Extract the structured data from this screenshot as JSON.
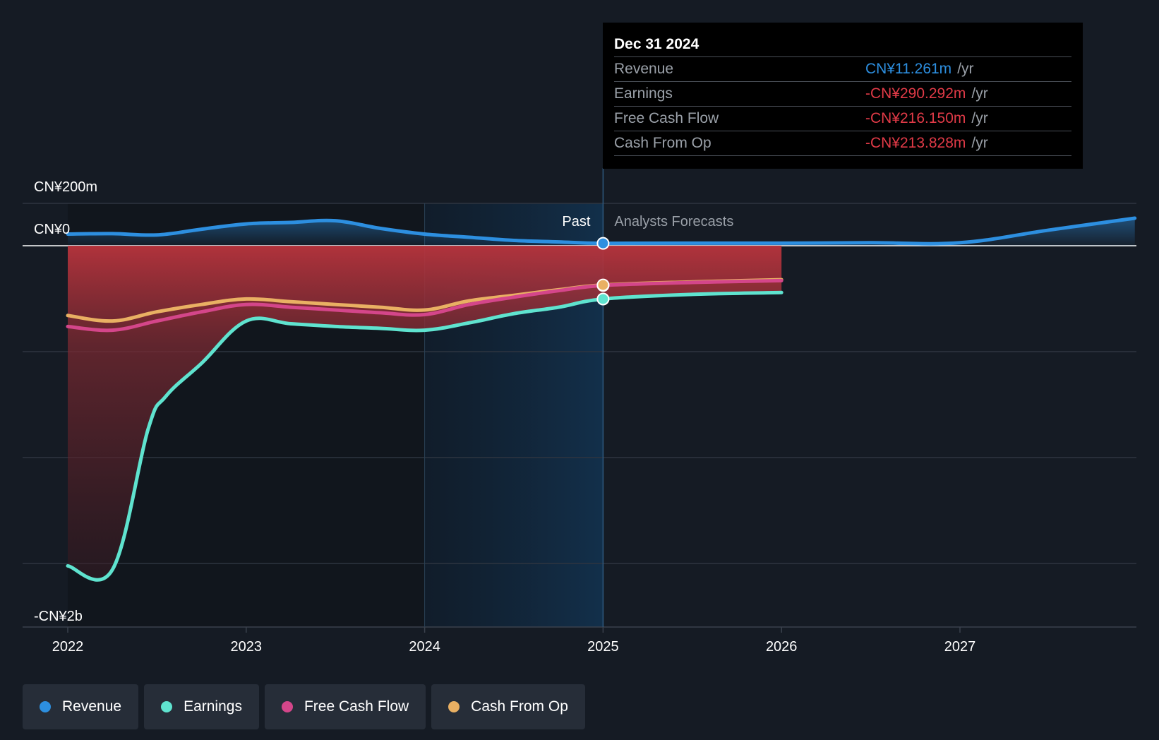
{
  "chart_data": {
    "type": "line",
    "y_axis": {
      "labels": [
        "CN¥200m",
        "CN¥0",
        "-CN¥2b"
      ],
      "unit": "CN¥"
    },
    "x_axis": {
      "ticks": [
        "2022",
        "2023",
        "2024",
        "2025",
        "2026",
        "2027"
      ],
      "range": [
        2021.75,
        2027.98
      ]
    },
    "ylim": [
      -2000,
      200
    ],
    "regions": {
      "past_label": "Past",
      "forecast_label": "Analysts Forecasts",
      "divider_x": 2025.0
    },
    "series": [
      {
        "name": "Revenue",
        "color": "#2d8fe0",
        "points": [
          [
            2022.0,
            55
          ],
          [
            2022.25,
            57
          ],
          [
            2022.5,
            51
          ],
          [
            2022.75,
            78
          ],
          [
            2023.0,
            103
          ],
          [
            2023.25,
            110
          ],
          [
            2023.5,
            118
          ],
          [
            2023.75,
            82
          ],
          [
            2024.0,
            55
          ],
          [
            2024.25,
            40
          ],
          [
            2024.5,
            25
          ],
          [
            2024.75,
            18
          ],
          [
            2025.0,
            11.261
          ],
          [
            2025.5,
            12
          ],
          [
            2026.0,
            12
          ],
          [
            2026.5,
            14
          ],
          [
            2027.0,
            14
          ],
          [
            2027.5,
            74
          ],
          [
            2027.98,
            130
          ]
        ]
      },
      {
        "name": "Earnings",
        "color": "#5fe3cf",
        "points": [
          [
            2022.0,
            -1744
          ],
          [
            2022.25,
            -1765
          ],
          [
            2022.45,
            -1000
          ],
          [
            2022.55,
            -820
          ],
          [
            2022.75,
            -640
          ],
          [
            2023.0,
            -410
          ],
          [
            2023.25,
            -425
          ],
          [
            2023.5,
            -440
          ],
          [
            2023.75,
            -450
          ],
          [
            2024.0,
            -460
          ],
          [
            2024.25,
            -420
          ],
          [
            2024.5,
            -370
          ],
          [
            2024.75,
            -335
          ],
          [
            2025.0,
            -290.292
          ],
          [
            2025.5,
            -265
          ],
          [
            2026.0,
            -255
          ]
        ]
      },
      {
        "name": "Free Cash Flow",
        "color": "#d4468a",
        "points": [
          [
            2022.0,
            -440
          ],
          [
            2022.25,
            -460
          ],
          [
            2022.5,
            -410
          ],
          [
            2022.75,
            -360
          ],
          [
            2023.0,
            -320
          ],
          [
            2023.25,
            -335
          ],
          [
            2023.5,
            -350
          ],
          [
            2023.75,
            -365
          ],
          [
            2024.0,
            -375
          ],
          [
            2024.25,
            -320
          ],
          [
            2024.5,
            -280
          ],
          [
            2024.75,
            -245
          ],
          [
            2025.0,
            -216.15
          ],
          [
            2025.5,
            -200
          ],
          [
            2026.0,
            -190
          ]
        ]
      },
      {
        "name": "Cash From Op",
        "color": "#e9b063",
        "points": [
          [
            2022.0,
            -380
          ],
          [
            2022.25,
            -410
          ],
          [
            2022.5,
            -360
          ],
          [
            2022.75,
            -320
          ],
          [
            2023.0,
            -290
          ],
          [
            2023.25,
            -305
          ],
          [
            2023.5,
            -320
          ],
          [
            2023.75,
            -335
          ],
          [
            2024.0,
            -350
          ],
          [
            2024.25,
            -300
          ],
          [
            2024.5,
            -270
          ],
          [
            2024.75,
            -240
          ],
          [
            2025.0,
            -213.828
          ],
          [
            2025.5,
            -197
          ],
          [
            2026.0,
            -185
          ]
        ]
      }
    ]
  },
  "tooltip": {
    "date": "Dec 31 2024",
    "rows": [
      {
        "label": "Revenue",
        "value": "CN¥11.261m",
        "unit": "/yr",
        "color": "#2d8fe0"
      },
      {
        "label": "Earnings",
        "value": "-CN¥290.292m",
        "unit": "/yr",
        "color": "#e03a47"
      },
      {
        "label": "Free Cash Flow",
        "value": "-CN¥216.150m",
        "unit": "/yr",
        "color": "#e03a47"
      },
      {
        "label": "Cash From Op",
        "value": "-CN¥213.828m",
        "unit": "/yr",
        "color": "#e03a47"
      }
    ]
  },
  "legend": [
    {
      "label": "Revenue",
      "color": "#2d8fe0"
    },
    {
      "label": "Earnings",
      "color": "#5fe3cf"
    },
    {
      "label": "Free Cash Flow",
      "color": "#d4468a"
    },
    {
      "label": "Cash From Op",
      "color": "#e9b063"
    }
  ]
}
